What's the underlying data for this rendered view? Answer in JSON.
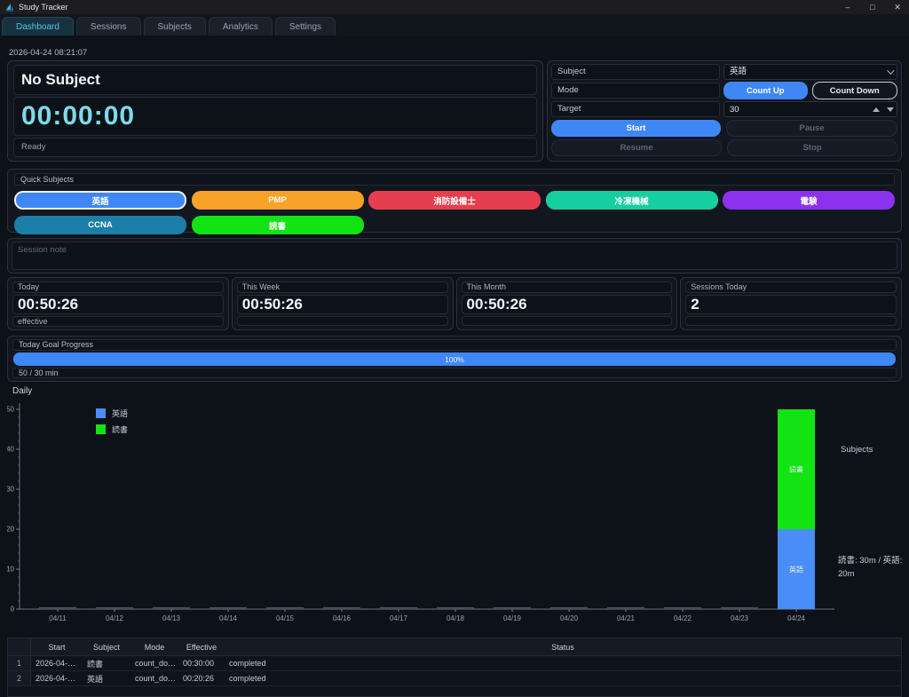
{
  "window": {
    "title": "Study Tracker",
    "controls": {
      "minimize": "–",
      "maximize": "□",
      "close": "✕"
    }
  },
  "tabs": [
    {
      "label": "Dashboard",
      "active": true
    },
    {
      "label": "Sessions",
      "active": false
    },
    {
      "label": "Subjects",
      "active": false
    },
    {
      "label": "Analytics",
      "active": false
    },
    {
      "label": "Settings",
      "active": false
    }
  ],
  "dashboard": {
    "timestamp": "2026-04-24 08:21:07",
    "timer": {
      "subject": "No Subject",
      "time": "00:00:00",
      "status": "Ready"
    },
    "controls": {
      "subject_label": "Subject",
      "subject_value": "英語",
      "mode_label": "Mode",
      "count_up": "Count Up",
      "count_down": "Count Down",
      "target_label": "Target",
      "target_value": "30",
      "start": "Start",
      "pause": "Pause",
      "resume": "Resume",
      "stop": "Stop"
    },
    "quick_subjects": {
      "title": "Quick Subjects",
      "buttons": [
        {
          "label": "英語",
          "color": "#3f87f6",
          "selected": true
        },
        {
          "label": "PMP",
          "color": "#f9a228",
          "selected": false
        },
        {
          "label": "消防設備士",
          "color": "#e63e4e",
          "selected": false
        },
        {
          "label": "冷凍機械",
          "color": "#15cfa0",
          "selected": false
        },
        {
          "label": "電験",
          "color": "#8c32ee",
          "selected": false
        },
        {
          "label": "CCNA",
          "color": "#1b7fa8",
          "selected": false
        },
        {
          "label": "読書",
          "color": "#12e312",
          "selected": false
        }
      ]
    },
    "session_note_placeholder": "Session note",
    "stats": [
      {
        "title": "Today",
        "value": "00:50:26",
        "footer": "effective"
      },
      {
        "title": "This Week",
        "value": "00:50:26",
        "footer": ""
      },
      {
        "title": "This Month",
        "value": "00:50:26",
        "footer": ""
      },
      {
        "title": "Sessions Today",
        "value": "2",
        "footer": ""
      }
    ],
    "goal": {
      "title": "Today Goal Progress",
      "percent": 100,
      "percent_label": "100%",
      "detail": "50 / 30 min"
    }
  },
  "chart_data": {
    "type": "bar",
    "stacked": true,
    "title": "Daily",
    "categories": [
      "04/11",
      "04/12",
      "04/13",
      "04/14",
      "04/15",
      "04/16",
      "04/17",
      "04/18",
      "04/19",
      "04/20",
      "04/21",
      "04/22",
      "04/23",
      "04/24"
    ],
    "series": [
      {
        "name": "英語",
        "color": "#4a8df8",
        "values": [
          0,
          0,
          0,
          0,
          0,
          0,
          0,
          0,
          0,
          0,
          0,
          0,
          0,
          20
        ]
      },
      {
        "name": "読書",
        "color": "#12e312",
        "values": [
          0,
          0,
          0,
          0,
          0,
          0,
          0,
          0,
          0,
          0,
          0,
          0,
          0,
          30
        ]
      }
    ],
    "xlabel": "",
    "ylabel": "",
    "ylim": [
      0,
      50
    ],
    "yticks": [
      0,
      10,
      20,
      30,
      40,
      50
    ],
    "grid": false,
    "legend_position": "upper-left",
    "right_label": "Subjects",
    "annotation": "読書: 30m / 英語: 20m"
  },
  "table": {
    "columns": [
      "",
      "Start",
      "Subject",
      "Mode",
      "Effective",
      "Status"
    ],
    "rows": [
      {
        "num": "1",
        "start": "2026-04-…",
        "subject": "読書",
        "mode": "count_do…",
        "effective": "00:30:00",
        "status": "completed"
      },
      {
        "num": "2",
        "start": "2026-04-…",
        "subject": "英語",
        "mode": "count_do…",
        "effective": "00:20:26",
        "status": "completed"
      }
    ]
  }
}
